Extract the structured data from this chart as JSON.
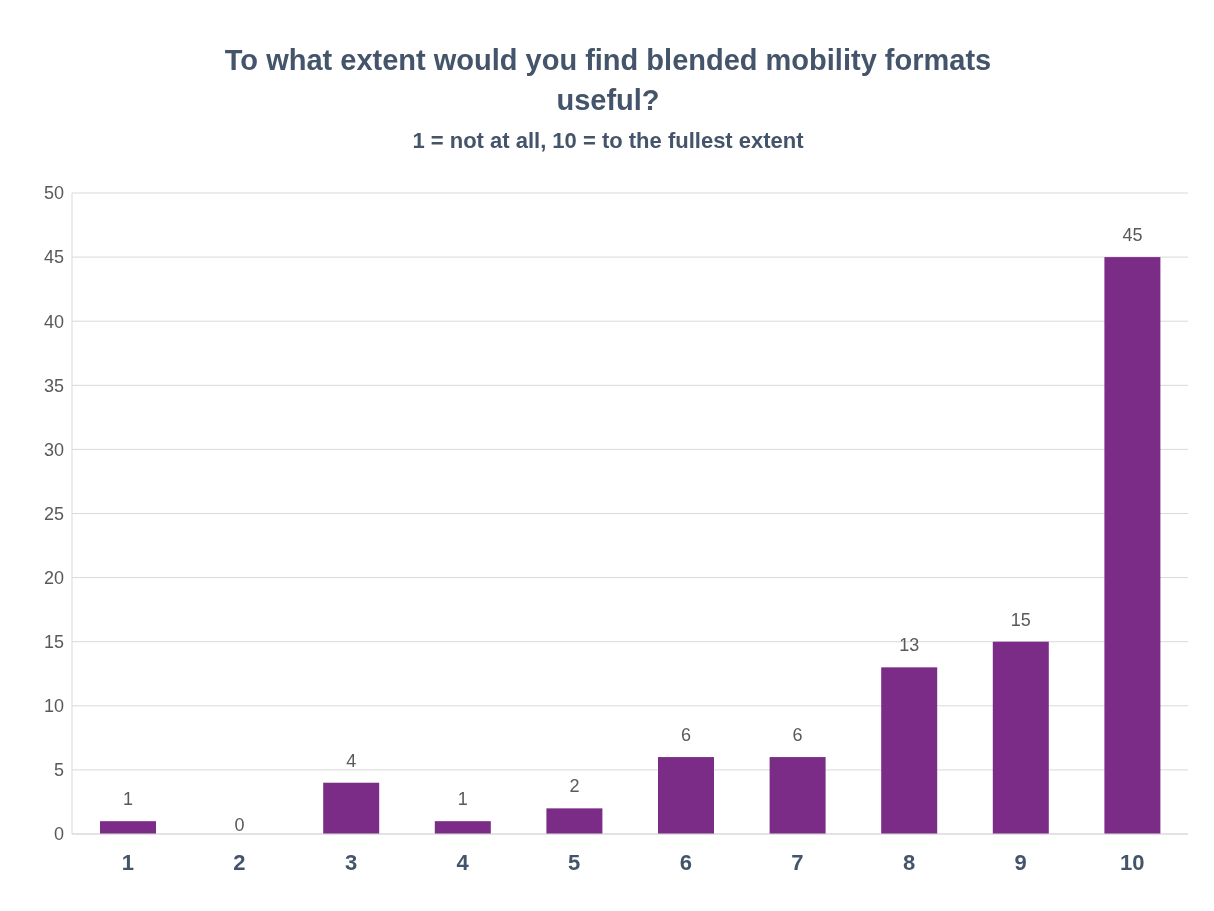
{
  "chart_data": {
    "type": "bar",
    "title": "To what extent would you find blended mobility formats useful?",
    "subtitle": "1 = not at all, 10 = to the fullest extent",
    "categories": [
      "1",
      "2",
      "3",
      "4",
      "5",
      "6",
      "7",
      "8",
      "9",
      "10"
    ],
    "values": [
      1,
      0,
      4,
      1,
      2,
      6,
      6,
      13,
      15,
      45
    ],
    "color": "#7b2c87",
    "ylim": [
      0,
      50
    ],
    "yticks": [
      0,
      5,
      10,
      15,
      20,
      25,
      30,
      35,
      40,
      45,
      50
    ],
    "grid": "y",
    "data_labels": true
  }
}
